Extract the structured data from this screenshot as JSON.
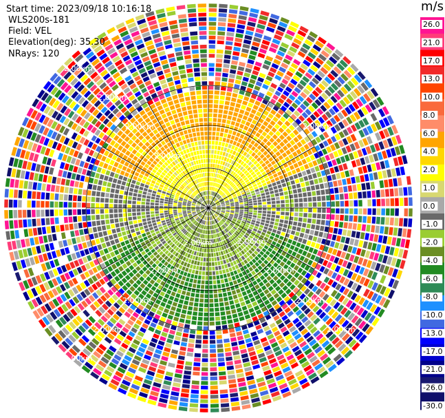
{
  "header": {
    "start_time": "Start time: 2023/09/18 10:16:18",
    "instrument": "WLS200s-181",
    "field": "Field: VEL",
    "elevation": "Elevation(deg): 35.30",
    "nrays": "NRays: 120"
  },
  "colorbar": {
    "unit": "m/s",
    "ticks": [
      "26.0",
      "21.0",
      "17.0",
      "13.0",
      "10.0",
      "8.0",
      "6.0",
      "4.0",
      "2.0",
      "1.0",
      "0.0",
      "-1.0",
      "-2.0",
      "-4.0",
      "-6.0",
      "-8.0",
      "-10.0",
      "-13.0",
      "-17.0",
      "-21.0",
      "-26.0",
      "-30.0"
    ],
    "colors": [
      "#ff1493",
      "#ff3c7a",
      "#ff0000",
      "#f22a2a",
      "#ff4500",
      "#fa6a3c",
      "#ff8c69",
      "#ffa500",
      "#ffd700",
      "#ffff00",
      "#d8d870",
      "#a9a9a9",
      "#696969",
      "#9acd32",
      "#6b8e23",
      "#228b22",
      "#2e8b57",
      "#1e90ff",
      "#4169e1",
      "#0000ff",
      "#0000cd",
      "#00008b",
      "#191970",
      "#10106a"
    ]
  },
  "chart_data": {
    "type": "heatmap",
    "projection": "polar PPI",
    "field": "VEL",
    "units": "m/s",
    "nrays": 120,
    "range_rings_km": [
      2.0
    ],
    "ring_labels": [
      "2.00km",
      "2.00km",
      "2.00km",
      "2.00km",
      "2.00km",
      "2.00km",
      "2.00km",
      "2.00km",
      "2.00km",
      "2.00km",
      "2.00km",
      "2.00km",
      "2.00km",
      "2.00km"
    ],
    "color_scale_min": -30.0,
    "color_scale_max": 26.0,
    "description_regions": [
      {
        "sector": "north",
        "value_range": [
          4.0,
          6.0
        ]
      },
      {
        "sector": "north-near",
        "value_range": [
          2.0,
          4.0
        ]
      },
      {
        "sector": "east-west",
        "value_range": [
          -1.0,
          0.0
        ]
      },
      {
        "sector": "south-near",
        "value_range": [
          -4.0,
          -2.0
        ]
      },
      {
        "sector": "south",
        "value_range": [
          -8.0,
          -4.0
        ]
      }
    ]
  }
}
